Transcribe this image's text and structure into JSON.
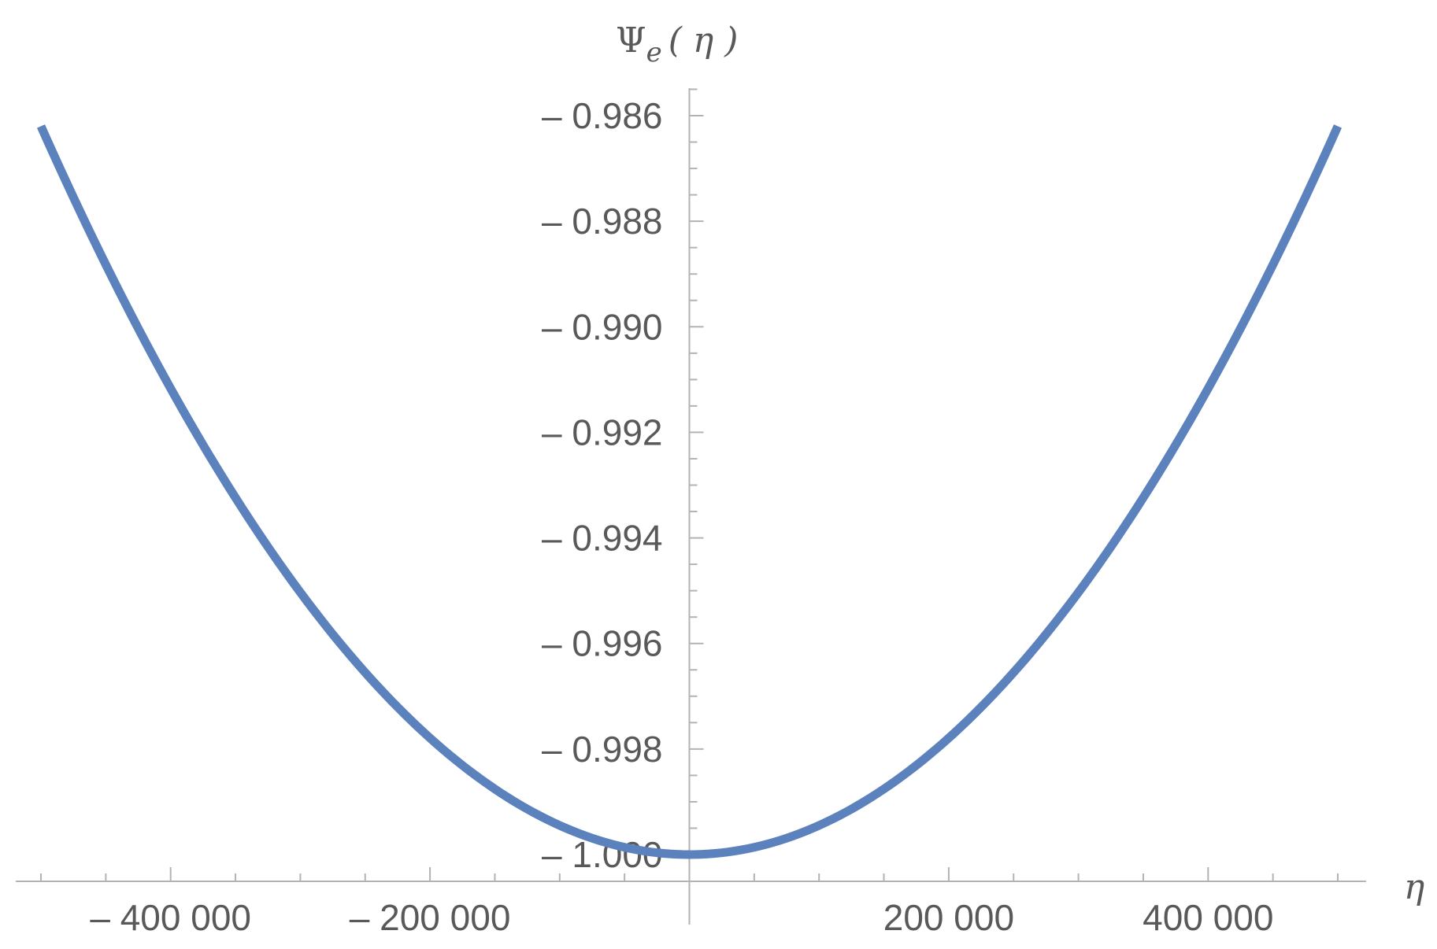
{
  "chart_data": {
    "type": "line",
    "xlabel": "η",
    "ylabel": "Ψe(η)",
    "ylabel_parts": {
      "main": "Ψ",
      "sub": "e",
      "arg": "( η )"
    },
    "xlim": [
      -520000,
      520000
    ],
    "ylim": [
      -1.0003,
      -0.9855
    ],
    "x_ticks": [
      {
        "value": -400000,
        "label": "– 400 000"
      },
      {
        "value": -200000,
        "label": "– 200 000"
      },
      {
        "value": 200000,
        "label": "200 000"
      },
      {
        "value": 400000,
        "label": "400 000"
      }
    ],
    "y_ticks": [
      {
        "value": -0.986,
        "label": "– 0.986"
      },
      {
        "value": -0.988,
        "label": "– 0.988"
      },
      {
        "value": -0.99,
        "label": "– 0.990"
      },
      {
        "value": -0.992,
        "label": "– 0.992"
      },
      {
        "value": -0.994,
        "label": "– 0.994"
      },
      {
        "value": -0.996,
        "label": "– 0.996"
      },
      {
        "value": -0.998,
        "label": "– 0.998"
      },
      {
        "value": -1.0,
        "label": "– 1.000"
      }
    ],
    "x_minor_step": 50000,
    "y_minor_step": 0.0005,
    "grid": false,
    "series": [
      {
        "color": "#5b82bd",
        "x": [
          -500000,
          -450000,
          -400000,
          -350000,
          -300000,
          -250000,
          -200000,
          -150000,
          -100000,
          -50000,
          0,
          50000,
          100000,
          150000,
          200000,
          250000,
          300000,
          350000,
          400000,
          450000,
          500000
        ],
        "y": [
          -0.9862,
          -0.9888,
          -0.9912,
          -0.9933,
          -0.9951,
          -0.9966,
          -0.9978,
          -0.99875,
          -0.99945,
          -0.99985,
          -1.0,
          -0.99985,
          -0.99945,
          -0.99875,
          -0.9978,
          -0.9966,
          -0.9951,
          -0.9933,
          -0.9912,
          -0.9888,
          -0.9862
        ]
      }
    ]
  }
}
